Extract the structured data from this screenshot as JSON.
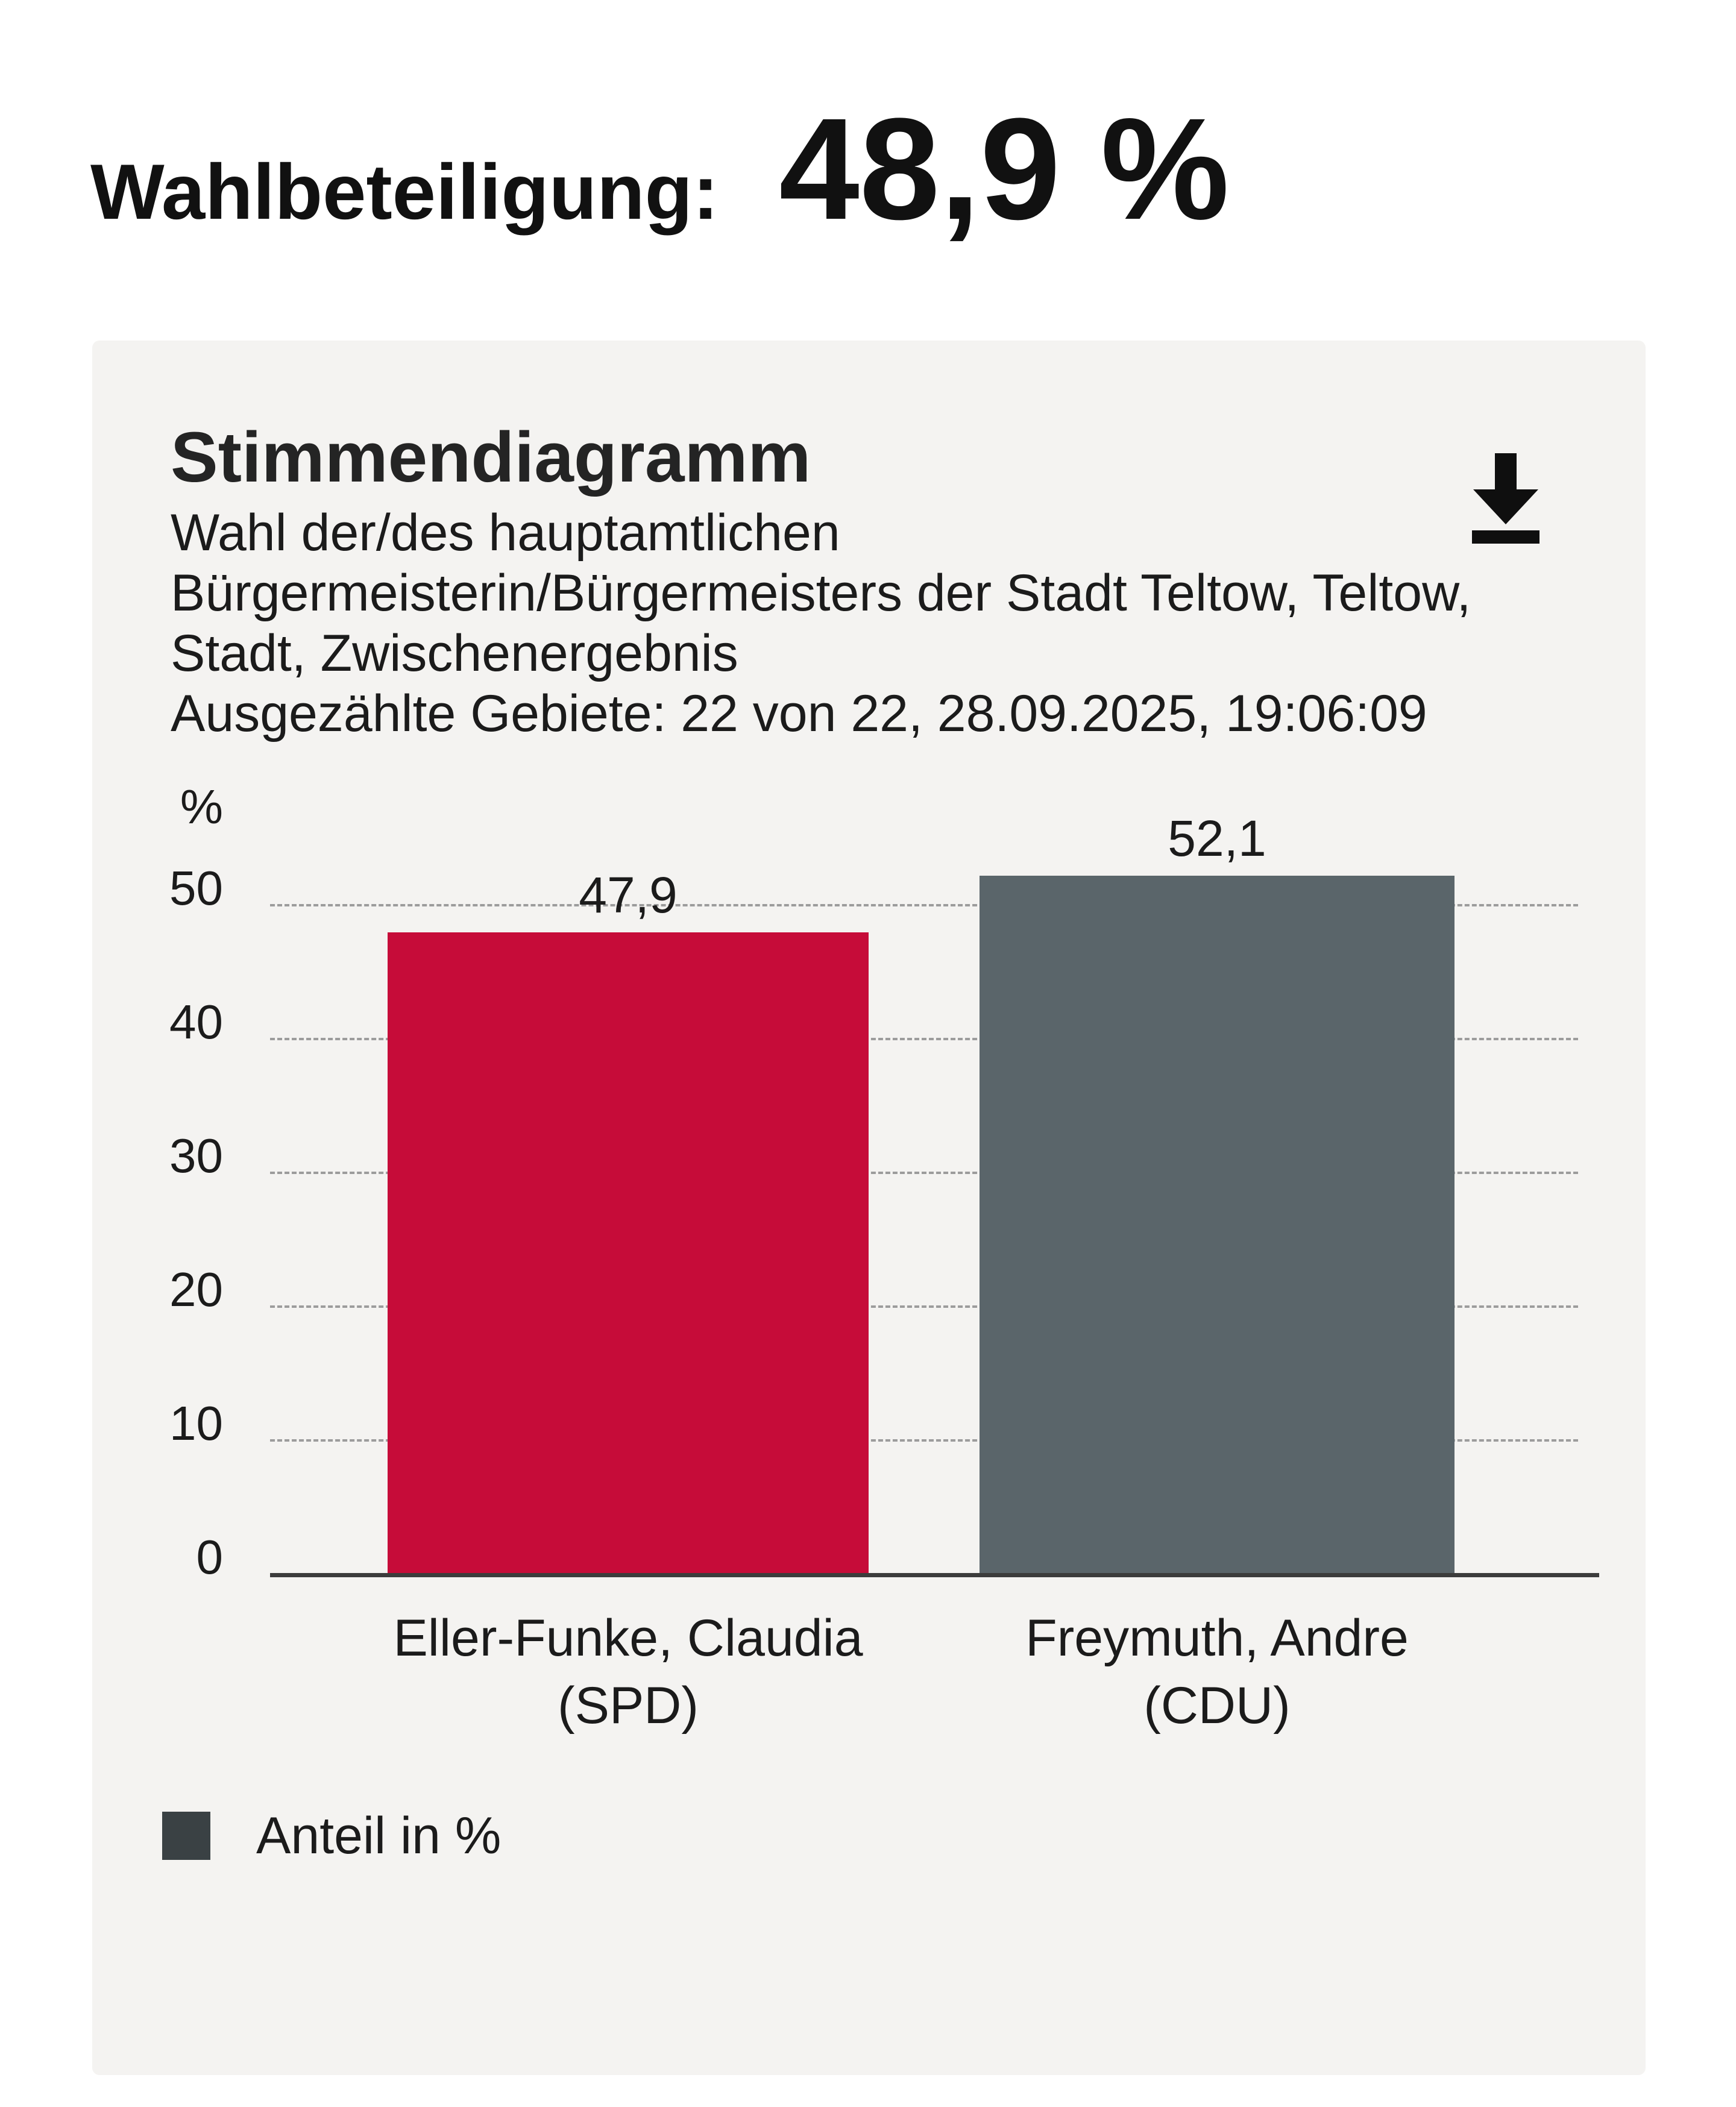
{
  "header": {
    "turnout_label": "Wahlbeteiligung:",
    "turnout_value": "48,9 %"
  },
  "card": {
    "title": "Stimmendiagramm",
    "subtitle_lines": [
      "Wahl der/des hauptamtlichen",
      "Bürgermeisterin/Bürgermeisters der Stadt Teltow, Teltow,",
      "Stadt, Zwischenergebnis",
      "Ausgezählte Gebiete: 22 von 22, 28.09.2025, 19:06:09"
    ],
    "download_icon": "download-icon"
  },
  "chart_data": {
    "type": "bar",
    "title": "Stimmendiagramm",
    "unit_label": "%",
    "categories": [
      "Eller-Funke, Claudia",
      "Freymuth, Andre"
    ],
    "category_sublabels": [
      "(SPD)",
      "(CDU)"
    ],
    "series": [
      {
        "name": "Anteil in %",
        "values": [
          47.9,
          52.1
        ]
      }
    ],
    "value_labels": [
      "47,9",
      "52,1"
    ],
    "bar_colors": [
      "#c60c39",
      "#5a656a"
    ],
    "yticks": [
      50,
      40,
      30,
      20,
      10,
      0
    ],
    "ylim": [
      0,
      55
    ],
    "grid": "horizontal dashed",
    "legend": {
      "label": "Anteil in %",
      "swatch_color": "#3a4144",
      "position": "bottom-left"
    }
  },
  "colors": {
    "card_background": "#f4f3f1",
    "page_background": "#ffffff",
    "bar_red": "#c60c39",
    "bar_gray": "#5a656a",
    "axis": "#3c3c3c",
    "gridline": "#9c9c9c",
    "text": "#1b1b1b"
  }
}
